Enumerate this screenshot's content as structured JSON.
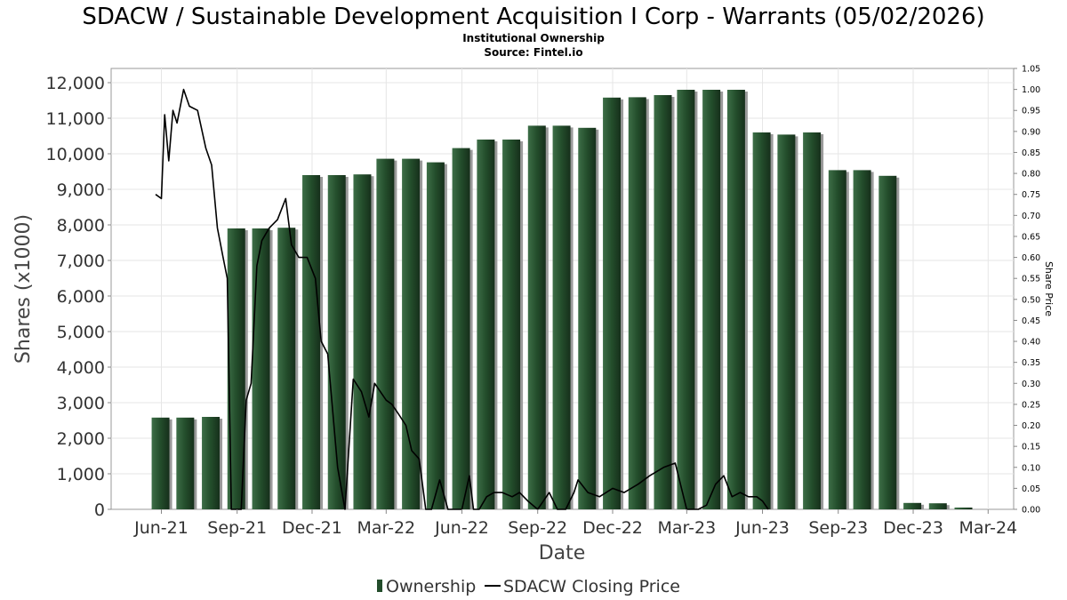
{
  "chart_data": {
    "type": "bar+line",
    "title": "SDACW / Sustainable Development Acquisition I Corp - Warrants (05/02/2026)",
    "subtitle": "Institutional Ownership",
    "source": "Source: Fintel.io",
    "xlabel": "Date",
    "ylabel": "Shares (x1000)",
    "y2label": "Share Price",
    "ylim": [
      0,
      12400
    ],
    "y2lim": [
      0,
      1.05
    ],
    "y_ticks": [
      "0",
      "1,000",
      "2,000",
      "3,000",
      "4,000",
      "5,000",
      "6,000",
      "7,000",
      "8,000",
      "9,000",
      "10,000",
      "11,000",
      "12,000"
    ],
    "y2_ticks": [
      "0.00",
      "0.05",
      "0.10",
      "0.15",
      "0.20",
      "0.25",
      "0.30",
      "0.35",
      "0.40",
      "0.45",
      "0.50",
      "0.55",
      "0.60",
      "0.65",
      "0.70",
      "0.75",
      "0.80",
      "0.85",
      "0.90",
      "0.95",
      "1.00",
      "1.05"
    ],
    "x_ticks": [
      "Jun-21",
      "Sep-21",
      "Dec-21",
      "Mar-22",
      "Jun-22",
      "Sep-22",
      "Dec-22",
      "Mar-23",
      "Jun-23",
      "Sep-23",
      "Dec-23",
      "Mar-24"
    ],
    "xlim": [
      "2021-04-01",
      "2024-04-01"
    ],
    "grid": true,
    "legend_position": "bottom",
    "series": [
      {
        "name": "Ownership",
        "type": "bar",
        "color": "#234d2b",
        "x": [
          "2021-05-31",
          "2021-06-30",
          "2021-07-31",
          "2021-08-31",
          "2021-09-30",
          "2021-10-31",
          "2021-11-30",
          "2021-12-31",
          "2022-01-31",
          "2022-02-28",
          "2022-03-31",
          "2022-04-30",
          "2022-05-31",
          "2022-06-30",
          "2022-07-31",
          "2022-08-31",
          "2022-09-30",
          "2022-10-31",
          "2022-11-30",
          "2022-12-31",
          "2023-01-31",
          "2023-02-28",
          "2023-03-31",
          "2023-04-30",
          "2023-05-31",
          "2023-06-30",
          "2023-07-31",
          "2023-08-31",
          "2023-09-30",
          "2023-10-31",
          "2023-11-30",
          "2023-12-31",
          "2024-01-31"
        ],
        "values": [
          2580,
          2580,
          2600,
          7900,
          7900,
          7920,
          9400,
          9400,
          9420,
          9860,
          9860,
          9760,
          10160,
          10400,
          10400,
          10790,
          10790,
          10730,
          11580,
          11590,
          11650,
          11800,
          11800,
          11800,
          10600,
          10540,
          10600,
          9540,
          9540,
          9380,
          180,
          170,
          50
        ]
      },
      {
        "name": "SDACW Closing Price",
        "type": "line",
        "color": "#000000",
        "x": [
          "2021-05-25",
          "2021-06-01",
          "2021-06-05",
          "2021-06-10",
          "2021-06-15",
          "2021-06-20",
          "2021-06-28",
          "2021-07-05",
          "2021-07-15",
          "2021-07-25",
          "2021-08-01",
          "2021-08-08",
          "2021-08-15",
          "2021-08-20",
          "2021-08-25",
          "2021-09-01",
          "2021-09-06",
          "2021-09-12",
          "2021-09-18",
          "2021-09-25",
          "2021-10-01",
          "2021-10-10",
          "2021-10-20",
          "2021-10-30",
          "2021-11-06",
          "2021-11-15",
          "2021-11-25",
          "2021-12-05",
          "2021-12-12",
          "2021-12-20",
          "2022-01-01",
          "2022-01-10",
          "2022-01-20",
          "2022-01-30",
          "2022-02-08",
          "2022-02-15",
          "2022-02-22",
          "2022-03-01",
          "2022-03-08",
          "2022-03-15",
          "2022-03-25",
          "2022-04-01",
          "2022-04-10",
          "2022-04-18",
          "2022-04-25",
          "2022-05-05",
          "2022-05-15",
          "2022-05-25",
          "2022-06-01",
          "2022-06-10",
          "2022-06-15",
          "2022-06-22",
          "2022-07-01",
          "2022-07-10",
          "2022-07-20",
          "2022-08-01",
          "2022-08-10",
          "2022-08-20",
          "2022-09-01",
          "2022-09-15",
          "2022-09-25",
          "2022-10-05",
          "2022-10-15",
          "2022-10-20",
          "2022-11-01",
          "2022-11-15",
          "2022-12-01",
          "2022-12-15",
          "2023-01-01",
          "2023-01-15",
          "2023-02-01",
          "2023-02-15",
          "2023-03-01",
          "2023-03-15",
          "2023-03-25",
          "2023-04-05",
          "2023-04-15",
          "2023-04-25",
          "2023-05-05",
          "2023-05-15",
          "2023-05-25",
          "2023-06-01",
          "2023-06-08"
        ],
        "values": [
          0.75,
          0.74,
          0.94,
          0.83,
          0.95,
          0.92,
          1.0,
          0.96,
          0.95,
          0.86,
          0.82,
          0.67,
          0.6,
          0.55,
          0.0,
          0.0,
          0.0,
          0.26,
          0.3,
          0.58,
          0.64,
          0.67,
          0.69,
          0.74,
          0.63,
          0.6,
          0.6,
          0.55,
          0.4,
          0.37,
          0.1,
          0.0,
          0.31,
          0.28,
          0.22,
          0.3,
          0.28,
          0.26,
          0.25,
          0.23,
          0.2,
          0.14,
          0.12,
          0.0,
          0.0,
          0.07,
          0.0,
          0.0,
          0.0,
          0.08,
          0.0,
          0.0,
          0.03,
          0.04,
          0.04,
          0.03,
          0.04,
          0.02,
          0.0,
          0.04,
          0.0,
          0.0,
          0.04,
          0.07,
          0.04,
          0.03,
          0.05,
          0.04,
          0.06,
          0.08,
          0.1,
          0.11,
          0.0,
          0.0,
          0.01,
          0.06,
          0.08,
          0.03,
          0.04,
          0.03,
          0.03,
          0.02,
          0.0
        ]
      }
    ]
  }
}
